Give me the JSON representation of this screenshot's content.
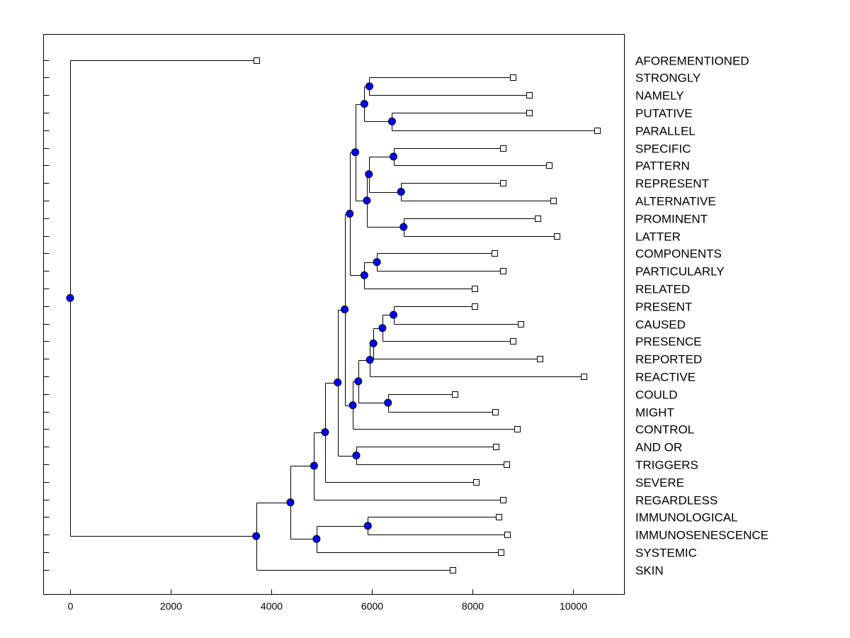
{
  "chart_data": {
    "type": "dendrogram",
    "orientation": "horizontal",
    "xlim": [
      -520,
      11000
    ],
    "xticks": [
      0,
      2000,
      4000,
      6000,
      8000,
      10000
    ],
    "xtick_labels": [
      "0",
      "2000",
      "4000",
      "6000",
      "8000",
      "10000"
    ],
    "grid": false,
    "leaves": [
      {
        "label": "AFOREMENTIONED",
        "x": 3700
      },
      {
        "label": "STRONGLY",
        "x": 8800
      },
      {
        "label": "NAMELY",
        "x": 9120
      },
      {
        "label": "PUTATIVE",
        "x": 9130
      },
      {
        "label": "PARALLEL",
        "x": 10480
      },
      {
        "label": "SPECIFIC",
        "x": 8610
      },
      {
        "label": "PATTERN",
        "x": 9520
      },
      {
        "label": "REPRESENT",
        "x": 8600
      },
      {
        "label": "ALTERNATIVE",
        "x": 9600
      },
      {
        "label": "PROMINENT",
        "x": 9300
      },
      {
        "label": "LATTER",
        "x": 9680
      },
      {
        "label": "COMPONENTS",
        "x": 8440
      },
      {
        "label": "PARTICULARLY",
        "x": 8600
      },
      {
        "label": "RELATED",
        "x": 8040
      },
      {
        "label": "PRESENT",
        "x": 8040
      },
      {
        "label": "CAUSED",
        "x": 8960
      },
      {
        "label": "PRESENCE",
        "x": 8800
      },
      {
        "label": "REPORTED",
        "x": 9340
      },
      {
        "label": "REACTIVE",
        "x": 10210
      },
      {
        "label": "COULD",
        "x": 7650
      },
      {
        "label": "MIGHT",
        "x": 8450
      },
      {
        "label": "CONTROL",
        "x": 8890
      },
      {
        "label": "AND OR",
        "x": 8470
      },
      {
        "label": "TRIGGERS",
        "x": 8680
      },
      {
        "label": "SEVERE",
        "x": 8070
      },
      {
        "label": "REGARDLESS",
        "x": 8600
      },
      {
        "label": "IMMUNOLOGICAL",
        "x": 8520
      },
      {
        "label": "IMMUNOSENESCENCE",
        "x": 8690
      },
      {
        "label": "SYSTEMIC",
        "x": 8570
      },
      {
        "label": "SKIN",
        "x": 7600
      }
    ],
    "merges": [
      {
        "id": "n1",
        "x": 5950,
        "children": [
          1,
          2
        ]
      },
      {
        "id": "n2",
        "x": 6400,
        "children": [
          3,
          4
        ]
      },
      {
        "id": "n3",
        "x": 5850,
        "children": [
          "n1",
          "n2"
        ]
      },
      {
        "id": "n4",
        "x": 6430,
        "children": [
          5,
          6
        ]
      },
      {
        "id": "n5",
        "x": 6580,
        "children": [
          7,
          8
        ]
      },
      {
        "id": "n6",
        "x": 5940,
        "children": [
          "n4",
          "n5"
        ]
      },
      {
        "id": "n7",
        "x": 6630,
        "children": [
          9,
          10
        ]
      },
      {
        "id": "n8",
        "x": 5900,
        "children": [
          "n6",
          "n7"
        ]
      },
      {
        "id": "n9",
        "x": 5670,
        "children": [
          "n3",
          "n8"
        ]
      },
      {
        "id": "n10",
        "x": 6100,
        "children": [
          11,
          12
        ]
      },
      {
        "id": "n11",
        "x": 5850,
        "children": [
          "n10",
          13
        ]
      },
      {
        "id": "n12",
        "x": 5560,
        "children": [
          "n9",
          "n11"
        ]
      },
      {
        "id": "n13",
        "x": 6430,
        "children": [
          14,
          15
        ]
      },
      {
        "id": "n14",
        "x": 6210,
        "children": [
          "n13",
          16
        ]
      },
      {
        "id": "n15",
        "x": 6030,
        "children": [
          "n14",
          17
        ]
      },
      {
        "id": "n16",
        "x": 5960,
        "children": [
          "n15",
          18
        ]
      },
      {
        "id": "n17",
        "x": 6320,
        "children": [
          19,
          20
        ]
      },
      {
        "id": "n18",
        "x": 5730,
        "children": [
          "n16",
          "n17"
        ]
      },
      {
        "id": "n19",
        "x": 5620,
        "children": [
          "n18",
          21
        ]
      },
      {
        "id": "n20",
        "x": 5460,
        "children": [
          "n12",
          "n19"
        ]
      },
      {
        "id": "n21",
        "x": 5690,
        "children": [
          22,
          23
        ]
      },
      {
        "id": "n22",
        "x": 5320,
        "children": [
          "n20",
          "n21"
        ]
      },
      {
        "id": "n23",
        "x": 5070,
        "children": [
          "n22",
          24
        ]
      },
      {
        "id": "n24",
        "x": 4850,
        "children": [
          "n23",
          25
        ]
      },
      {
        "id": "n25",
        "x": 5920,
        "children": [
          26,
          27
        ]
      },
      {
        "id": "n26",
        "x": 4900,
        "children": [
          "n25",
          28
        ]
      },
      {
        "id": "n27",
        "x": 4380,
        "children": [
          "n24",
          "n26"
        ]
      },
      {
        "id": "n28",
        "x": 3700,
        "children": [
          "n27",
          29
        ]
      },
      {
        "id": "n29",
        "x": 0,
        "children": [
          0,
          "n28"
        ]
      }
    ]
  }
}
